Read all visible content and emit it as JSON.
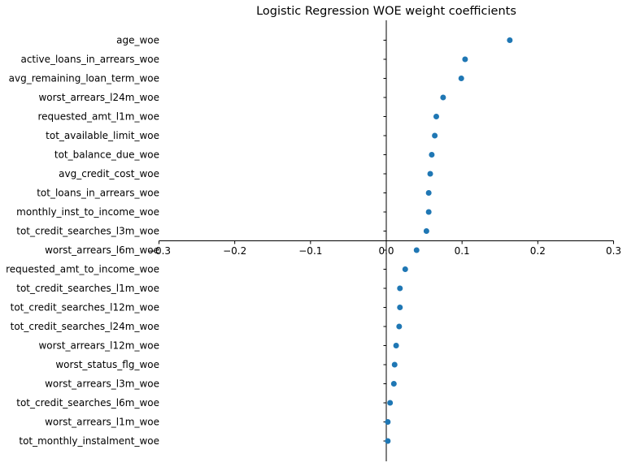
{
  "chart_data": {
    "type": "scatter",
    "title": "Logistic Regression WOE weight coefficients",
    "xlabel": "",
    "ylabel": "",
    "xlim": [
      -0.3,
      0.3
    ],
    "xticks": [
      -0.3,
      -0.2,
      -0.1,
      0.0,
      0.1,
      0.2,
      0.3
    ],
    "xtick_labels": [
      "−0.3",
      "−0.2",
      "−0.1",
      "0.0",
      "0.1",
      "0.2",
      "0.3"
    ],
    "grid": false,
    "color": "#1f77b4",
    "categories": [
      "age_woe",
      "active_loans_in_arrears_woe",
      "avg_remaining_loan_term_woe",
      "worst_arrears_l24m_woe",
      "requested_amt_l1m_woe",
      "tot_available_limit_woe",
      "tot_balance_due_woe",
      "avg_credit_cost_woe",
      "tot_loans_in_arrears_woe",
      "monthly_inst_to_income_woe",
      "tot_credit_searches_l3m_woe",
      "worst_arrears_l6m_woe",
      "requested_amt_to_income_woe",
      "tot_credit_searches_l1m_woe",
      "tot_credit_searches_l12m_woe",
      "tot_credit_searches_l24m_woe",
      "worst_arrears_l12m_woe",
      "worst_status_flg_woe",
      "worst_arrears_l3m_woe",
      "tot_credit_searches_l6m_woe",
      "worst_arrears_l1m_woe",
      "tot_monthly_instalment_woe"
    ],
    "values": [
      0.163,
      0.104,
      0.099,
      0.075,
      0.066,
      0.064,
      0.06,
      0.058,
      0.056,
      0.056,
      0.053,
      0.04,
      0.025,
      0.018,
      0.018,
      0.017,
      0.013,
      0.011,
      0.01,
      0.005,
      0.002,
      0.002
    ]
  }
}
